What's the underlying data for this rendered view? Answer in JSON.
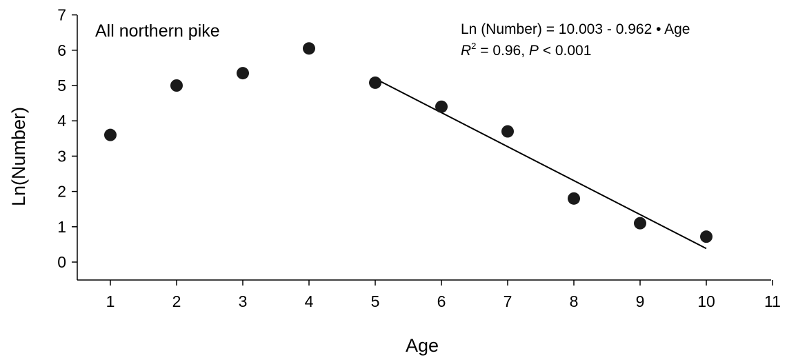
{
  "chart_data": {
    "type": "scatter",
    "panel_label": "All northern pike",
    "xlabel": "Age",
    "ylabel": "Ln(Number)",
    "xlim": [
      0.5,
      11
    ],
    "ylim": [
      -0.5,
      7
    ],
    "xticks": [
      1,
      2,
      3,
      4,
      5,
      6,
      7,
      8,
      9,
      10,
      11
    ],
    "yticks": [
      0,
      1,
      2,
      3,
      4,
      5,
      6,
      7
    ],
    "grid": false,
    "series": [
      {
        "x": [
          1,
          2,
          3,
          4,
          5,
          6,
          7,
          8,
          9,
          10
        ],
        "y": [
          3.6,
          5.0,
          5.35,
          6.05,
          5.08,
          4.4,
          3.7,
          1.8,
          1.1,
          0.72
        ]
      }
    ],
    "fit": {
      "x_range": [
        5,
        10
      ],
      "intercept": 10.003,
      "slope": -0.962,
      "equation": "Ln (Number) = 10.003 - 0.962 • Age",
      "r2_label": "R",
      "r2_sup": "2",
      "r2_value": " = 0.96, ",
      "p_label": "P",
      "p_value": " < 0.001"
    }
  }
}
